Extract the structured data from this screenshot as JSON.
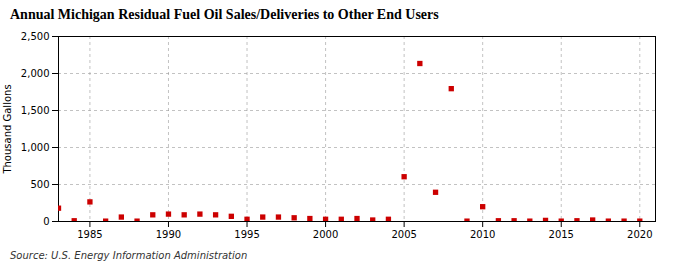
{
  "chart_data": {
    "type": "scatter",
    "title": "Annual Michigan Residual Fuel Oil Sales/Deliveries to Other End Users",
    "ylabel": "Thousand Gallons",
    "caption": "Source: U.S. Energy Information Administration",
    "x": [
      1983,
      1984,
      1985,
      1986,
      1987,
      1988,
      1989,
      1990,
      1991,
      1992,
      1993,
      1994,
      1995,
      1996,
      1997,
      1998,
      1999,
      2000,
      2001,
      2002,
      2003,
      2004,
      2005,
      2006,
      2007,
      2008,
      2009,
      2010,
      2011,
      2012,
      2013,
      2014,
      2015,
      2016,
      2017,
      2018,
      2019,
      2020
    ],
    "values": [
      180,
      10,
      265,
      5,
      60,
      5,
      90,
      100,
      90,
      100,
      90,
      70,
      30,
      60,
      60,
      50,
      40,
      30,
      30,
      40,
      20,
      30,
      605,
      2135,
      395,
      1795,
      5,
      200,
      10,
      10,
      5,
      15,
      5,
      10,
      20,
      5,
      5,
      5
    ],
    "color": "#cc0000",
    "marker": "square",
    "xlim": [
      1983,
      2021
    ],
    "ylim": [
      0,
      2500
    ],
    "xticks": [
      1985,
      1990,
      1995,
      2000,
      2005,
      2010,
      2015,
      2020
    ],
    "yticks": [
      0,
      500,
      {
        "value": 1000,
        "label": "1,000"
      },
      {
        "value": 1500,
        "label": "1,500"
      },
      {
        "value": 2000,
        "label": "2,000"
      },
      {
        "value": 2500,
        "label": "2,500"
      }
    ],
    "grid": true
  }
}
